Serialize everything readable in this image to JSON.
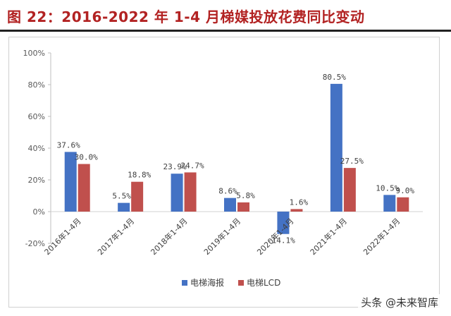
{
  "title": "图 22：2016-2022 年 1-4 月梯媒投放花费同比变动",
  "watermark": "头条 @未来智库",
  "colors": {
    "series1": "#4472c4",
    "series2": "#c0504d",
    "title": "#b22222"
  },
  "chart_data": {
    "type": "bar",
    "title": "",
    "xlabel": "",
    "ylabel": "",
    "categories": [
      "2016年1-4月",
      "2017年1-4月",
      "2018年1-4月",
      "2019年1-4月",
      "2020年1-4月",
      "2021年1-4月",
      "2022年1-4月"
    ],
    "series": [
      {
        "name": "电梯海报",
        "values": [
          37.6,
          5.5,
          23.9,
          8.6,
          -14.1,
          80.5,
          10.5
        ],
        "labels": [
          "37.6%",
          "5.5%",
          "23.9%",
          "8.6%",
          "-14.1%",
          "80.5%",
          "10.5%"
        ]
      },
      {
        "name": "电梯LCD",
        "values": [
          30.0,
          18.8,
          24.7,
          5.8,
          1.6,
          27.5,
          9.0
        ],
        "labels": [
          "30.0%",
          "18.8%",
          "24.7%",
          "5.8%",
          "1.6%",
          "27.5%",
          "9.0%"
        ]
      }
    ],
    "ylim": [
      -20,
      100
    ],
    "yticks": [
      -20,
      0,
      20,
      40,
      60,
      80,
      100
    ],
    "ytick_labels": [
      "-20%",
      "0%",
      "20%",
      "40%",
      "60%",
      "80%",
      "100%"
    ],
    "grid": false,
    "legend_position": "bottom"
  }
}
